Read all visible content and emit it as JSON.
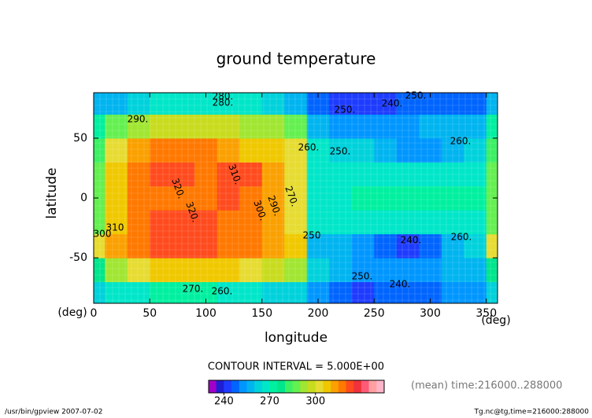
{
  "chart_data": {
    "type": "contour",
    "title": "ground temperature",
    "x_label": "longitude",
    "y_label": "latitude",
    "x_unit": "(deg)",
    "y_unit": "(deg)",
    "x": [
      0,
      20,
      40,
      60,
      80,
      100,
      120,
      140,
      160,
      180,
      200,
      220,
      240,
      260,
      280,
      300,
      320,
      340,
      360
    ],
    "y": [
      -80,
      -60,
      -40,
      -20,
      0,
      20,
      40,
      60,
      80
    ],
    "z": [
      [
        262,
        265,
        268,
        270,
        270,
        270,
        268,
        266,
        264,
        260,
        250,
        246,
        244,
        245,
        246,
        248,
        250,
        252,
        262
      ],
      [
        275,
        290,
        300,
        305,
        308,
        308,
        306,
        302,
        298,
        290,
        260,
        255,
        252,
        250,
        250,
        252,
        255,
        258,
        275
      ],
      [
        300,
        310,
        318,
        322,
        322,
        320,
        318,
        315,
        312,
        305,
        258,
        255,
        250,
        245,
        243,
        248,
        255,
        262,
        300
      ],
      [
        285,
        305,
        315,
        320,
        322,
        320,
        318,
        315,
        310,
        300,
        265,
        265,
        266,
        266,
        265,
        265,
        266,
        268,
        285
      ],
      [
        285,
        305,
        315,
        318,
        316,
        315,
        320,
        318,
        310,
        300,
        268,
        268,
        270,
        270,
        270,
        270,
        270,
        270,
        285
      ],
      [
        285,
        305,
        315,
        322,
        320,
        315,
        320,
        322,
        310,
        300,
        268,
        268,
        268,
        268,
        266,
        265,
        265,
        268,
        285
      ],
      [
        280,
        300,
        312,
        318,
        318,
        315,
        310,
        308,
        305,
        300,
        265,
        262,
        262,
        258,
        252,
        250,
        255,
        260,
        280
      ],
      [
        270,
        285,
        292,
        295,
        297,
        297,
        296,
        292,
        290,
        285,
        258,
        250,
        250,
        252,
        253,
        255,
        255,
        257,
        270
      ],
      [
        255,
        258,
        262,
        265,
        268,
        268,
        268,
        265,
        262,
        258,
        245,
        240,
        242,
        244,
        245,
        246,
        247,
        248,
        255
      ]
    ],
    "xlim": [
      0,
      360
    ],
    "ylim": [
      -88,
      88
    ],
    "xticks": [
      0,
      50,
      100,
      150,
      200,
      250,
      300,
      350
    ],
    "yticks": [
      -50,
      0,
      50
    ],
    "contour_interval_label": "CONTOUR INTERVAL = 5.000E+00",
    "contour_labels": [
      "280.",
      "280.",
      "290.",
      "250.",
      "240.",
      "250.",
      "260.",
      "250.",
      "260.",
      "310.",
      "320.",
      "320.",
      "300.",
      "290.",
      "270.",
      "300",
      "310",
      "250",
      "240.",
      "260.",
      "250.",
      "240.",
      "270.",
      "260."
    ],
    "clim": [
      230,
      345
    ],
    "colors": [
      "#a000c8",
      "#1e1ed2",
      "#1e3cff",
      "#0064ff",
      "#0096ff",
      "#00b4f0",
      "#00d2dc",
      "#00e6c8",
      "#00f0a0",
      "#00e68c",
      "#3cf064",
      "#64f050",
      "#a0e632",
      "#c8dc1e",
      "#e6dc32",
      "#f0c800",
      "#faa000",
      "#ff7800",
      "#ff4b1e",
      "#f0323c",
      "#ff5a78",
      "#ffa0a0",
      "#ffb4c8"
    ],
    "cticks": [
      240,
      270,
      300
    ],
    "time_note": "(mean) time:216000..288000",
    "footer_left": "/usr/bin/gpview  2007-07-02",
    "footer_right": "Tg.nc@tg,time=216000:288000"
  }
}
